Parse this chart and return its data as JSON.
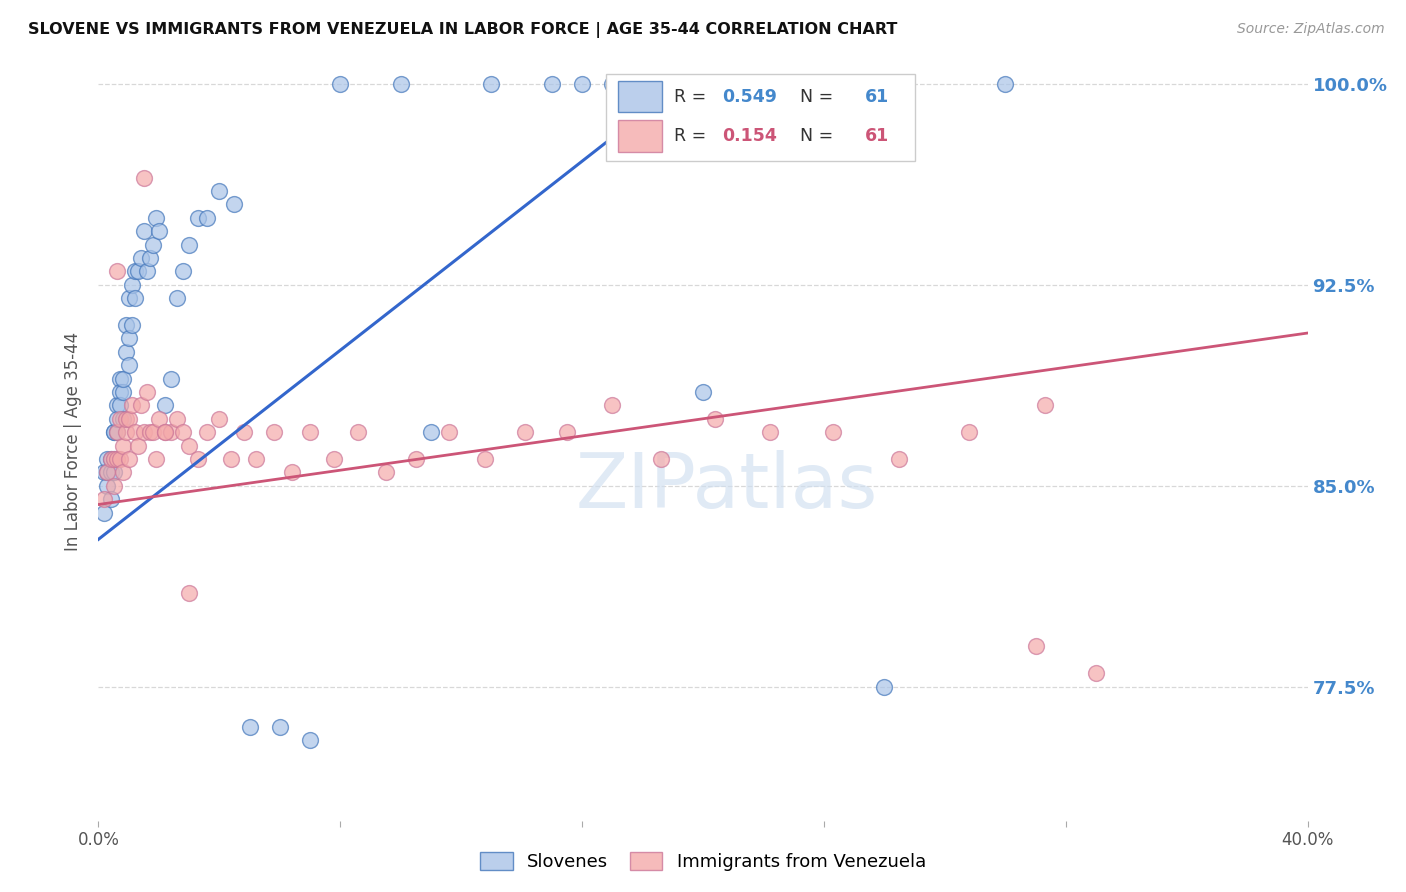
{
  "title": "SLOVENE VS IMMIGRANTS FROM VENEZUELA IN LABOR FORCE | AGE 35-44 CORRELATION CHART",
  "source": "Source: ZipAtlas.com",
  "ylabel": "In Labor Force | Age 35-44",
  "xlim": [
    0.0,
    0.4
  ],
  "ylim": [
    0.725,
    1.008
  ],
  "xtick_positions": [
    0.0,
    0.08,
    0.16,
    0.24,
    0.32,
    0.4
  ],
  "xtick_labels": [
    "0.0%",
    "",
    "",
    "",
    "",
    "40.0%"
  ],
  "ytick_positions": [
    1.0,
    0.925,
    0.85,
    0.775
  ],
  "ytick_labels": [
    "100.0%",
    "92.5%",
    "85.0%",
    "77.5%"
  ],
  "grid_color": "#d8d8d8",
  "bg_color": "#ffffff",
  "blue_face": "#aac4e8",
  "blue_edge": "#4477bb",
  "pink_face": "#f4aaaa",
  "pink_edge": "#cc7799",
  "blue_line": "#3366cc",
  "pink_line": "#cc5577",
  "blue_tick": "#4488cc",
  "R_blue": 0.549,
  "N_blue": 61,
  "R_pink": 0.154,
  "N_pink": 61,
  "watermark": "ZIPatlas",
  "legend_label_blue": "Slovenes",
  "legend_label_pink": "Immigrants from Venezuela",
  "slovene_x": [
    0.002,
    0.002,
    0.003,
    0.003,
    0.003,
    0.004,
    0.004,
    0.004,
    0.005,
    0.005,
    0.005,
    0.005,
    0.006,
    0.006,
    0.006,
    0.007,
    0.007,
    0.007,
    0.008,
    0.008,
    0.008,
    0.009,
    0.009,
    0.01,
    0.01,
    0.01,
    0.011,
    0.011,
    0.012,
    0.012,
    0.013,
    0.014,
    0.015,
    0.016,
    0.017,
    0.018,
    0.019,
    0.02,
    0.022,
    0.024,
    0.026,
    0.028,
    0.03,
    0.033,
    0.036,
    0.04,
    0.045,
    0.05,
    0.06,
    0.07,
    0.08,
    0.1,
    0.11,
    0.13,
    0.15,
    0.16,
    0.17,
    0.18,
    0.2,
    0.26,
    0.3
  ],
  "slovene_y": [
    0.855,
    0.84,
    0.86,
    0.85,
    0.855,
    0.845,
    0.86,
    0.855,
    0.855,
    0.87,
    0.86,
    0.87,
    0.88,
    0.87,
    0.875,
    0.89,
    0.885,
    0.88,
    0.875,
    0.885,
    0.89,
    0.9,
    0.91,
    0.895,
    0.905,
    0.92,
    0.91,
    0.925,
    0.92,
    0.93,
    0.93,
    0.935,
    0.945,
    0.93,
    0.935,
    0.94,
    0.95,
    0.945,
    0.88,
    0.89,
    0.92,
    0.93,
    0.94,
    0.95,
    0.95,
    0.96,
    0.955,
    0.76,
    0.76,
    0.755,
    1.0,
    1.0,
    0.87,
    1.0,
    1.0,
    1.0,
    1.0,
    1.0,
    0.885,
    0.775,
    1.0
  ],
  "venezuela_x": [
    0.002,
    0.003,
    0.004,
    0.005,
    0.005,
    0.006,
    0.006,
    0.007,
    0.007,
    0.008,
    0.008,
    0.009,
    0.009,
    0.01,
    0.01,
    0.011,
    0.012,
    0.013,
    0.014,
    0.015,
    0.016,
    0.017,
    0.018,
    0.019,
    0.02,
    0.022,
    0.024,
    0.026,
    0.028,
    0.03,
    0.033,
    0.036,
    0.04,
    0.044,
    0.048,
    0.052,
    0.058,
    0.064,
    0.07,
    0.078,
    0.086,
    0.095,
    0.105,
    0.116,
    0.128,
    0.141,
    0.155,
    0.17,
    0.186,
    0.204,
    0.222,
    0.243,
    0.265,
    0.288,
    0.313,
    0.006,
    0.015,
    0.022,
    0.03,
    0.31,
    0.33
  ],
  "venezuela_y": [
    0.845,
    0.855,
    0.86,
    0.85,
    0.86,
    0.86,
    0.87,
    0.86,
    0.875,
    0.865,
    0.855,
    0.87,
    0.875,
    0.86,
    0.875,
    0.88,
    0.87,
    0.865,
    0.88,
    0.87,
    0.885,
    0.87,
    0.87,
    0.86,
    0.875,
    0.87,
    0.87,
    0.875,
    0.87,
    0.865,
    0.86,
    0.87,
    0.875,
    0.86,
    0.87,
    0.86,
    0.87,
    0.855,
    0.87,
    0.86,
    0.87,
    0.855,
    0.86,
    0.87,
    0.86,
    0.87,
    0.87,
    0.88,
    0.86,
    0.875,
    0.87,
    0.87,
    0.86,
    0.87,
    0.88,
    0.93,
    0.965,
    0.87,
    0.81,
    0.79,
    0.78
  ],
  "blue_line_x0": 0.0,
  "blue_line_y0": 0.83,
  "blue_line_x1": 0.195,
  "blue_line_y1": 1.002,
  "pink_line_x0": 0.0,
  "pink_line_y0": 0.843,
  "pink_line_x1": 0.4,
  "pink_line_y1": 0.907
}
